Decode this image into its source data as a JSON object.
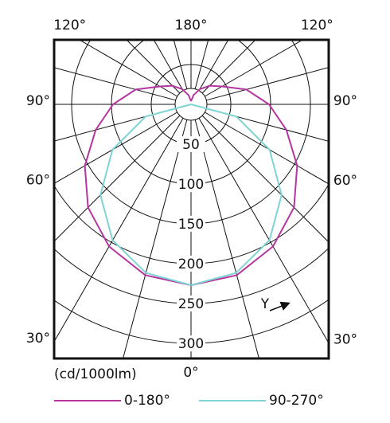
{
  "chart_data": {
    "type": "polar",
    "unit_label": "(cd/1000lm)",
    "annotation": "Y",
    "theta": [
      0,
      15,
      30,
      45,
      60,
      75,
      90,
      105,
      120,
      135,
      150,
      165,
      180
    ],
    "angle_ticks": [
      {
        "value": 0,
        "label": "0°"
      },
      {
        "value": 30,
        "label": "30°"
      },
      {
        "value": 60,
        "label": "60°"
      },
      {
        "value": 90,
        "label": "90°"
      },
      {
        "value": 120,
        "label": "120°"
      },
      {
        "value": 180,
        "label": "180°"
      }
    ],
    "rlim": [
      0,
      300
    ],
    "rticks": [
      50,
      100,
      150,
      200,
      250,
      300
    ],
    "series": [
      {
        "name": "0-180°",
        "color": "#b5369e",
        "values": [
          227,
          222,
          206,
          183,
          154,
          124,
          98,
          72,
          45,
          33,
          22,
          12,
          4
        ]
      },
      {
        "name": "90-270°",
        "color": "#7fd3d3",
        "values": [
          227,
          219,
          197,
          161,
          114,
          59,
          0,
          null,
          null,
          null,
          null,
          null,
          null
        ]
      }
    ]
  }
}
